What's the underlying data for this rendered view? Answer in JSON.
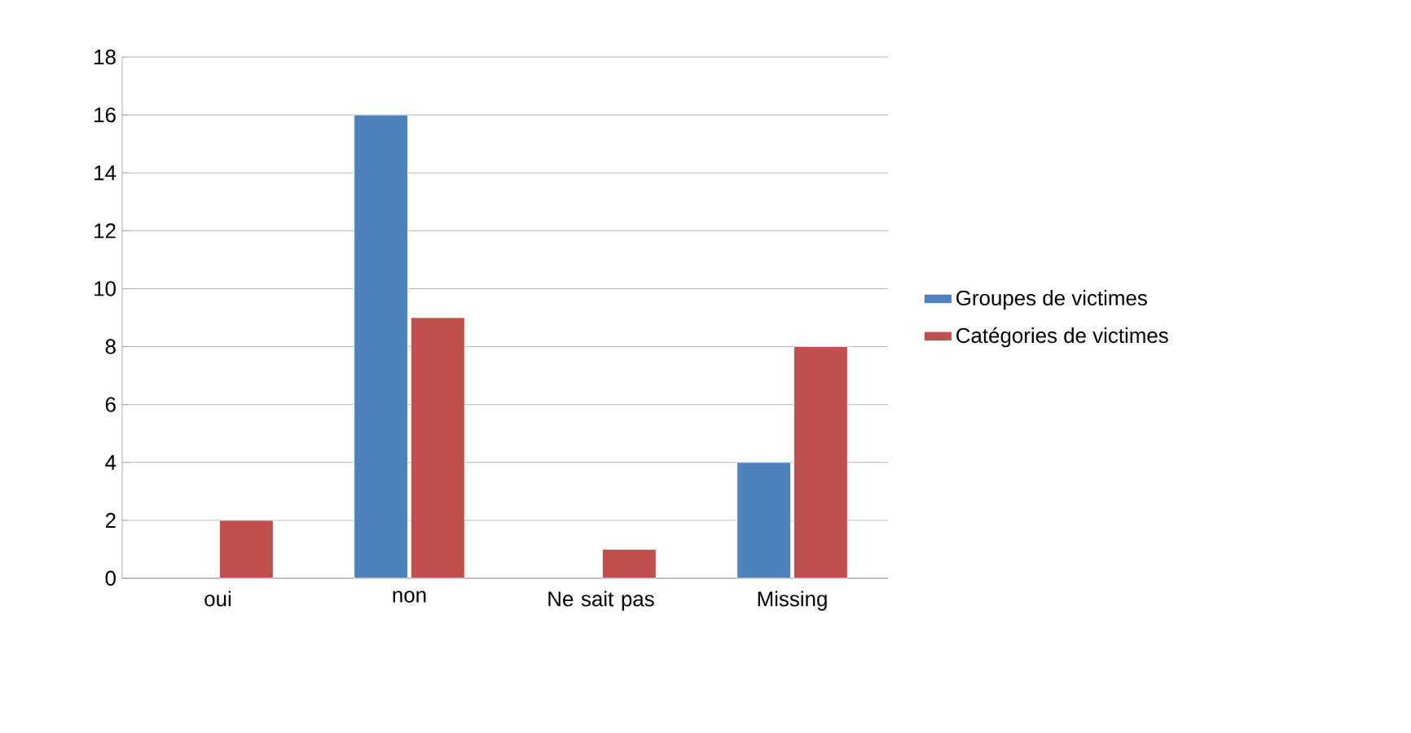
{
  "chart_data": {
    "type": "bar",
    "categories": [
      "oui",
      "non",
      "Ne sait pas",
      "Missing"
    ],
    "series": [
      {
        "name": "Groupes de victimes",
        "color": "#4f81bd",
        "values": [
          null,
          16,
          null,
          4
        ]
      },
      {
        "name": "Catégories de victimes",
        "color": "#c0504d",
        "values": [
          2,
          9,
          1,
          8
        ]
      }
    ],
    "ylim": [
      0,
      18
    ],
    "yticks": [
      0,
      2,
      4,
      6,
      8,
      10,
      12,
      14,
      16,
      18
    ],
    "grid": "y",
    "legend": "right"
  }
}
